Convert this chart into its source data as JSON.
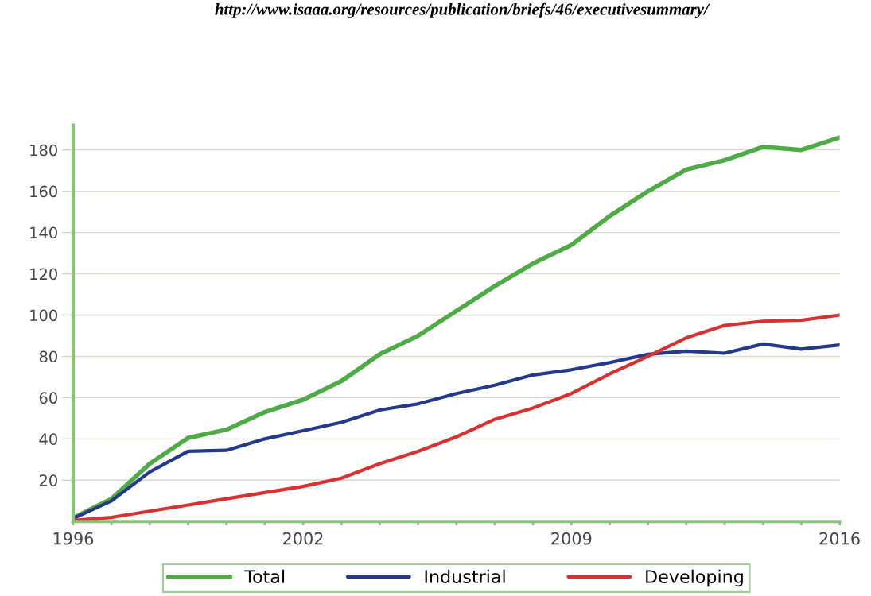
{
  "chart_data": {
    "type": "line",
    "annotations": [
      "http://www.isaaa.org/resources/publication/briefs/46/executivesummary/"
    ],
    "x": [
      1996,
      1997,
      1998,
      1999,
      2000,
      2001,
      2002,
      2003,
      2004,
      2005,
      2006,
      2007,
      2008,
      2009,
      2010,
      2011,
      2012,
      2013,
      2014,
      2015,
      2016
    ],
    "series": [
      {
        "name": "Total",
        "color": "#4eab45",
        "values": [
          1.7,
          11,
          28,
          40.5,
          44.5,
          53,
          59,
          68,
          81,
          90,
          102,
          114,
          125,
          134,
          148,
          160,
          170.5,
          175,
          181.5,
          180,
          186
        ]
      },
      {
        "name": "Industrial",
        "color": "#24398c",
        "values": [
          1.5,
          10,
          24,
          34,
          34.5,
          40,
          44,
          48,
          54,
          57,
          62,
          66,
          71,
          73.5,
          77,
          81,
          82.5,
          81.5,
          86,
          83.5,
          85.5
        ]
      },
      {
        "name": "Developing",
        "color": "#d8312f",
        "values": [
          0.5,
          2,
          5,
          8,
          11,
          14,
          17,
          21,
          28,
          34,
          41,
          49.5,
          55,
          62,
          71.5,
          80,
          89,
          95,
          97,
          97.5,
          100
        ]
      }
    ],
    "xlim": [
      1996,
      2016
    ],
    "xticks": [
      1996,
      {
        "value": 1997,
        "label": null
      },
      {
        "value": 1998,
        "label": null
      },
      {
        "value": 1999,
        "label": null
      },
      {
        "value": 2000,
        "label": null
      },
      {
        "value": 2001,
        "label": null
      },
      2002,
      {
        "value": 2003,
        "label": null
      },
      {
        "value": 2004,
        "label": null
      },
      {
        "value": 2005,
        "label": null
      },
      {
        "value": 2006,
        "label": null
      },
      {
        "value": 2007,
        "label": null
      },
      {
        "value": 2008,
        "label": null
      },
      2009,
      {
        "value": 2010,
        "label": null
      },
      {
        "value": 2011,
        "label": null
      },
      {
        "value": 2012,
        "label": null
      },
      {
        "value": 2013,
        "label": null
      },
      {
        "value": 2014,
        "label": null
      },
      {
        "value": 2015,
        "label": null
      },
      2016
    ],
    "ylim": [
      0,
      192
    ],
    "yticks": [
      20,
      40,
      60,
      80,
      100,
      120,
      140,
      160,
      180
    ],
    "grid": "y",
    "legend": "bottom",
    "marker": "none",
    "line_style": "solid"
  }
}
